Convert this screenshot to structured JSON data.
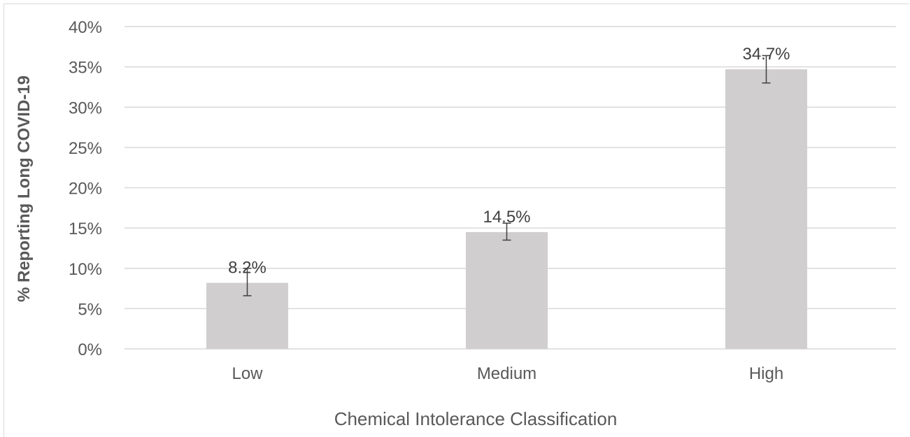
{
  "colors": {
    "bar": "#d0cece",
    "gridline": "#d9d9d9",
    "error_bar": "#404040",
    "tick_text": "#595959"
  },
  "chart_data": {
    "type": "bar",
    "title": "",
    "xlabel": "Chemical Intolerance Classification",
    "ylabel": "% Reporting Long COVID-19",
    "categories": [
      "Low",
      "Medium",
      "High"
    ],
    "values": [
      8.2,
      14.5,
      34.7
    ],
    "data_labels": [
      "8.2%",
      "14.5%",
      "34.7%"
    ],
    "error_bars": [
      {
        "low": 6.6,
        "high": 10.0
      },
      {
        "low": 13.5,
        "high": 15.6
      },
      {
        "low": 33.0,
        "high": 36.4
      }
    ],
    "ylim": [
      0,
      40
    ],
    "yticks": [
      0,
      5,
      10,
      15,
      20,
      25,
      30,
      35,
      40
    ],
    "ytick_labels": [
      "0%",
      "5%",
      "10%",
      "15%",
      "20%",
      "25%",
      "30%",
      "35%",
      "40%"
    ],
    "grid": true,
    "legend": "none"
  }
}
